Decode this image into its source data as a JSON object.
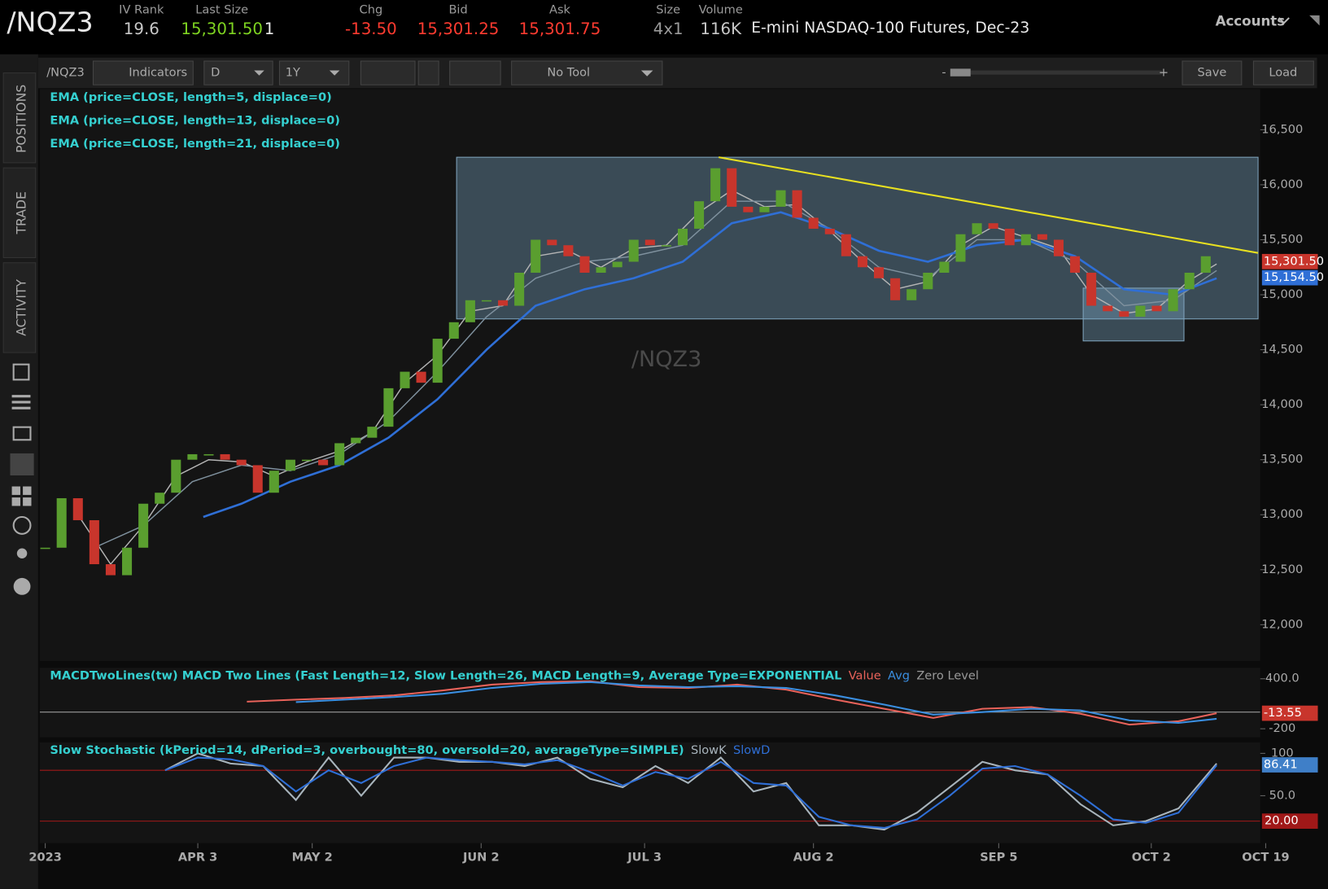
{
  "header": {
    "symbol": "/NQZ3",
    "fields": [
      {
        "label": "IV Rank",
        "value": "19.6",
        "color": "#c8c8c8"
      },
      {
        "label": "Last Size",
        "value": "15,301.50",
        "color": "#7ed321",
        "extra": "1"
      },
      {
        "label": "Chg",
        "value": "-13.50",
        "color": "#ff3b30"
      },
      {
        "label": "Bid",
        "value": "15,301.25",
        "color": "#ff3b30"
      },
      {
        "label": "Ask",
        "value": "15,301.75",
        "color": "#ff3b30"
      },
      {
        "label": "Size",
        "value": "4x1",
        "color": "#9a9a9a"
      },
      {
        "label": "Volume",
        "value": "116K",
        "color": "#c8c8c8"
      }
    ],
    "description": "E-mini NASDAQ-100 Futures, Dec-23",
    "accounts": "Accounts"
  },
  "toolbar": {
    "symbol": "/NQZ3",
    "indicators": "Indicators",
    "aggregation": "D",
    "range": "1Y",
    "tool": "No Tool",
    "zoom_out": "-",
    "zoom_in": "+",
    "save": "Save",
    "load": "Load"
  },
  "sidebar": [
    "POSITIONS",
    "TRADE",
    "ACTIVITY"
  ],
  "chart_data": [
    {
      "type": "candlestick",
      "watermark": "/NQZ3",
      "up_color": "#5a9e2f",
      "down_color": "#c8352c",
      "x": [
        0,
        3,
        6,
        9,
        12,
        15,
        18,
        21,
        24,
        27,
        30,
        33,
        36,
        39,
        42,
        45,
        48,
        51,
        54,
        57,
        60,
        63,
        66,
        69,
        72,
        75,
        78,
        81,
        84,
        87,
        90,
        93,
        96,
        99,
        102,
        105,
        108,
        111,
        114,
        117,
        120,
        123,
        126,
        129,
        132,
        135,
        138,
        141,
        144,
        147,
        150,
        153,
        156,
        159,
        162,
        165,
        168,
        171,
        174,
        177,
        180,
        183,
        186,
        189,
        192,
        195,
        198,
        201,
        204,
        207,
        210,
        213
      ],
      "values": [
        12700,
        13150,
        12950,
        12550,
        12450,
        12700,
        13100,
        13200,
        13500,
        13550,
        13550,
        13500,
        13450,
        13200,
        13400,
        13500,
        13500,
        13450,
        13650,
        13700,
        13800,
        14150,
        14300,
        14200,
        14600,
        14750,
        14950,
        14950,
        14900,
        15200,
        15500,
        15450,
        15350,
        15200,
        15250,
        15300,
        15500,
        15450,
        15450,
        15600,
        15850,
        16150,
        15800,
        15750,
        15800,
        15950,
        15700,
        15600,
        15550,
        15350,
        15250,
        15150,
        14950,
        15050,
        15200,
        15300,
        15550,
        15650,
        15600,
        15450,
        15550,
        15500,
        15350,
        15200,
        14900,
        14850,
        14800,
        14900,
        14850,
        15050,
        15200,
        15350
      ],
      "series": [
        {
          "name": "EMA (price=CLOSE, length=5, displace=0)",
          "color": "#b4b4b4",
          "x": [
            6,
            12,
            18,
            24,
            30,
            36,
            42,
            48,
            54,
            60,
            66,
            72,
            78,
            84,
            90,
            96,
            102,
            108,
            114,
            120,
            126,
            132,
            138,
            144,
            150,
            156,
            162,
            168,
            174,
            180,
            186,
            192,
            198,
            204,
            210,
            215
          ],
          "values": [
            13000,
            12550,
            12900,
            13350,
            13500,
            13480,
            13350,
            13480,
            13580,
            13750,
            14200,
            14450,
            14850,
            14900,
            15350,
            15400,
            15250,
            15420,
            15450,
            15750,
            15950,
            15800,
            15820,
            15580,
            15300,
            15050,
            15120,
            15450,
            15620,
            15520,
            15420,
            15000,
            14830,
            14870,
            15130,
            15280
          ]
        },
        {
          "name": "EMA (price=CLOSE, length=13, displace=0)",
          "color": "#7f919e",
          "x": [
            9,
            18,
            27,
            36,
            45,
            54,
            63,
            72,
            81,
            90,
            99,
            108,
            117,
            126,
            135,
            144,
            153,
            162,
            171,
            180,
            189,
            198,
            207,
            215
          ],
          "values": [
            12700,
            12900,
            13300,
            13450,
            13400,
            13550,
            13850,
            14300,
            14800,
            15150,
            15300,
            15350,
            15450,
            15850,
            15850,
            15600,
            15250,
            15150,
            15500,
            15500,
            15300,
            14900,
            14950,
            15220
          ]
        },
        {
          "name": "EMA (price=CLOSE, length=21, displace=0)",
          "color": "#2f6fd6",
          "x": [
            29,
            36,
            45,
            54,
            63,
            72,
            81,
            90,
            99,
            108,
            117,
            126,
            135,
            144,
            153,
            162,
            171,
            180,
            189,
            198,
            207,
            215
          ],
          "values": [
            12980,
            13100,
            13300,
            13450,
            13700,
            14050,
            14500,
            14900,
            15050,
            15150,
            15300,
            15650,
            15750,
            15600,
            15400,
            15300,
            15450,
            15500,
            15350,
            15050,
            15000,
            15150
          ]
        }
      ],
      "trendline": {
        "x": [
          123.6,
          222.6
        ],
        "values": [
          16250,
          15380
        ],
        "color": "#e8e020"
      },
      "zones": [
        {
          "x": [
            75.5,
            222.6
          ],
          "values": [
            14780,
            16250
          ]
        },
        {
          "x": [
            190.5,
            209
          ],
          "values": [
            14580,
            15060
          ]
        }
      ],
      "price_labels": [
        {
          "value": 15301.5,
          "label": "15,301.50",
          "color": "#c8352c"
        },
        {
          "value": 15154.5,
          "label": "15,154.50",
          "color": "#2f6fd6"
        }
      ],
      "xlim": [
        -1,
        223
      ],
      "xticks": [
        {
          "value": 0,
          "label": "2023"
        },
        {
          "value": 28,
          "label": "APR 3"
        },
        {
          "value": 49,
          "label": "MAY 2"
        },
        {
          "value": 80,
          "label": "JUN 2"
        },
        {
          "value": 110,
          "label": "JUL 3"
        },
        {
          "value": 141,
          "label": "AUG 2"
        },
        {
          "value": 175,
          "label": "SEP 5"
        },
        {
          "value": 203,
          "label": "OCT 2"
        },
        {
          "value": 224,
          "label": "OCT 19"
        }
      ],
      "ylim": [
        11670,
        16870
      ],
      "yticks": [
        {
          "value": 12000,
          "label": "12,000"
        },
        {
          "value": 12500,
          "label": "12,500"
        },
        {
          "value": 13000,
          "label": "13,000"
        },
        {
          "value": 13500,
          "label": "13,500"
        },
        {
          "value": 14000,
          "label": "14,000"
        },
        {
          "value": 14500,
          "label": "14,500"
        },
        {
          "value": 15000,
          "label": "15,000"
        },
        {
          "value": 15500,
          "label": "15,500"
        },
        {
          "value": 16000,
          "label": "16,000"
        },
        {
          "value": 16500,
          "label": "16,500"
        }
      ]
    },
    {
      "type": "line",
      "title": "MACDTwoLines(tw) MACD Two Lines (Fast Length=12, Slow Length=26, MACD Length=9, Average Type=EXPONENTIAL",
      "zero_label": "Zero Level",
      "series": [
        {
          "name": "Value",
          "color": "#e8625a",
          "x": [
            37,
            46,
            55,
            64,
            73,
            82,
            91,
            100,
            109,
            118,
            127,
            136,
            145,
            154,
            163,
            172,
            181,
            190,
            199,
            208,
            215
          ],
          "values": [
            125,
            150,
            170,
            200,
            260,
            330,
            360,
            370,
            300,
            290,
            330,
            270,
            150,
            40,
            -70,
            40,
            60,
            -20,
            -150,
            -110,
            -14
          ]
        },
        {
          "name": "Avg",
          "color": "#3a8ee0",
          "x": [
            46,
            55,
            64,
            73,
            82,
            91,
            100,
            109,
            118,
            127,
            136,
            145,
            154,
            163,
            172,
            181,
            190,
            199,
            208,
            215
          ],
          "values": [
            120,
            150,
            180,
            220,
            290,
            340,
            360,
            320,
            300,
            310,
            290,
            200,
            90,
            -30,
            0,
            40,
            20,
            -100,
            -130,
            -80
          ]
        }
      ],
      "last": {
        "value": -13.55,
        "label": "-13.55"
      },
      "xlim": [
        -1,
        223
      ],
      "ylim": [
        -302,
        532
      ],
      "yticks": [
        {
          "value": 400,
          "label": "400.0"
        },
        -200
      ]
    },
    {
      "type": "line",
      "title": "Slow Stochastic (kPeriod=14, dPeriod=3, overbought=80, oversold=20, averageType=SIMPLE)",
      "series": [
        {
          "name": "SlowK",
          "color": "#a8b4bc",
          "x": [
            22,
            28,
            34,
            40,
            46,
            52,
            58,
            64,
            70,
            76,
            82,
            88,
            94,
            100,
            106,
            112,
            118,
            124,
            130,
            136,
            142,
            148,
            154,
            160,
            166,
            172,
            178,
            184,
            190,
            196,
            202,
            208,
            215
          ],
          "values": [
            80,
            100,
            88,
            85,
            45,
            95,
            50,
            95,
            95,
            90,
            90,
            85,
            95,
            70,
            60,
            85,
            65,
            95,
            55,
            65,
            15,
            15,
            10,
            30,
            60,
            90,
            80,
            75,
            40,
            15,
            20,
            35,
            88
          ]
        },
        {
          "name": "SlowD",
          "color": "#2f6fd6",
          "x": [
            22,
            28,
            34,
            40,
            46,
            52,
            58,
            64,
            70,
            76,
            82,
            88,
            94,
            100,
            106,
            112,
            118,
            124,
            130,
            136,
            142,
            148,
            154,
            160,
            166,
            172,
            178,
            184,
            190,
            196,
            202,
            208,
            215
          ],
          "values": [
            80,
            95,
            93,
            85,
            55,
            80,
            65,
            85,
            95,
            92,
            90,
            87,
            92,
            78,
            62,
            78,
            70,
            90,
            65,
            62,
            25,
            15,
            12,
            22,
            50,
            82,
            85,
            75,
            50,
            22,
            18,
            30,
            86
          ]
        }
      ],
      "levels": [
        {
          "value": 80,
          "color": "#a01818"
        },
        {
          "value": 20,
          "color": "#a01818",
          "label": "20.00"
        }
      ],
      "last": {
        "value": 86.41,
        "label": "86.41"
      },
      "xlim": [
        -1,
        223
      ],
      "ylim": [
        -6,
        113
      ],
      "yticks": [
        100,
        {
          "value": 50,
          "label": "50.0"
        }
      ]
    }
  ]
}
